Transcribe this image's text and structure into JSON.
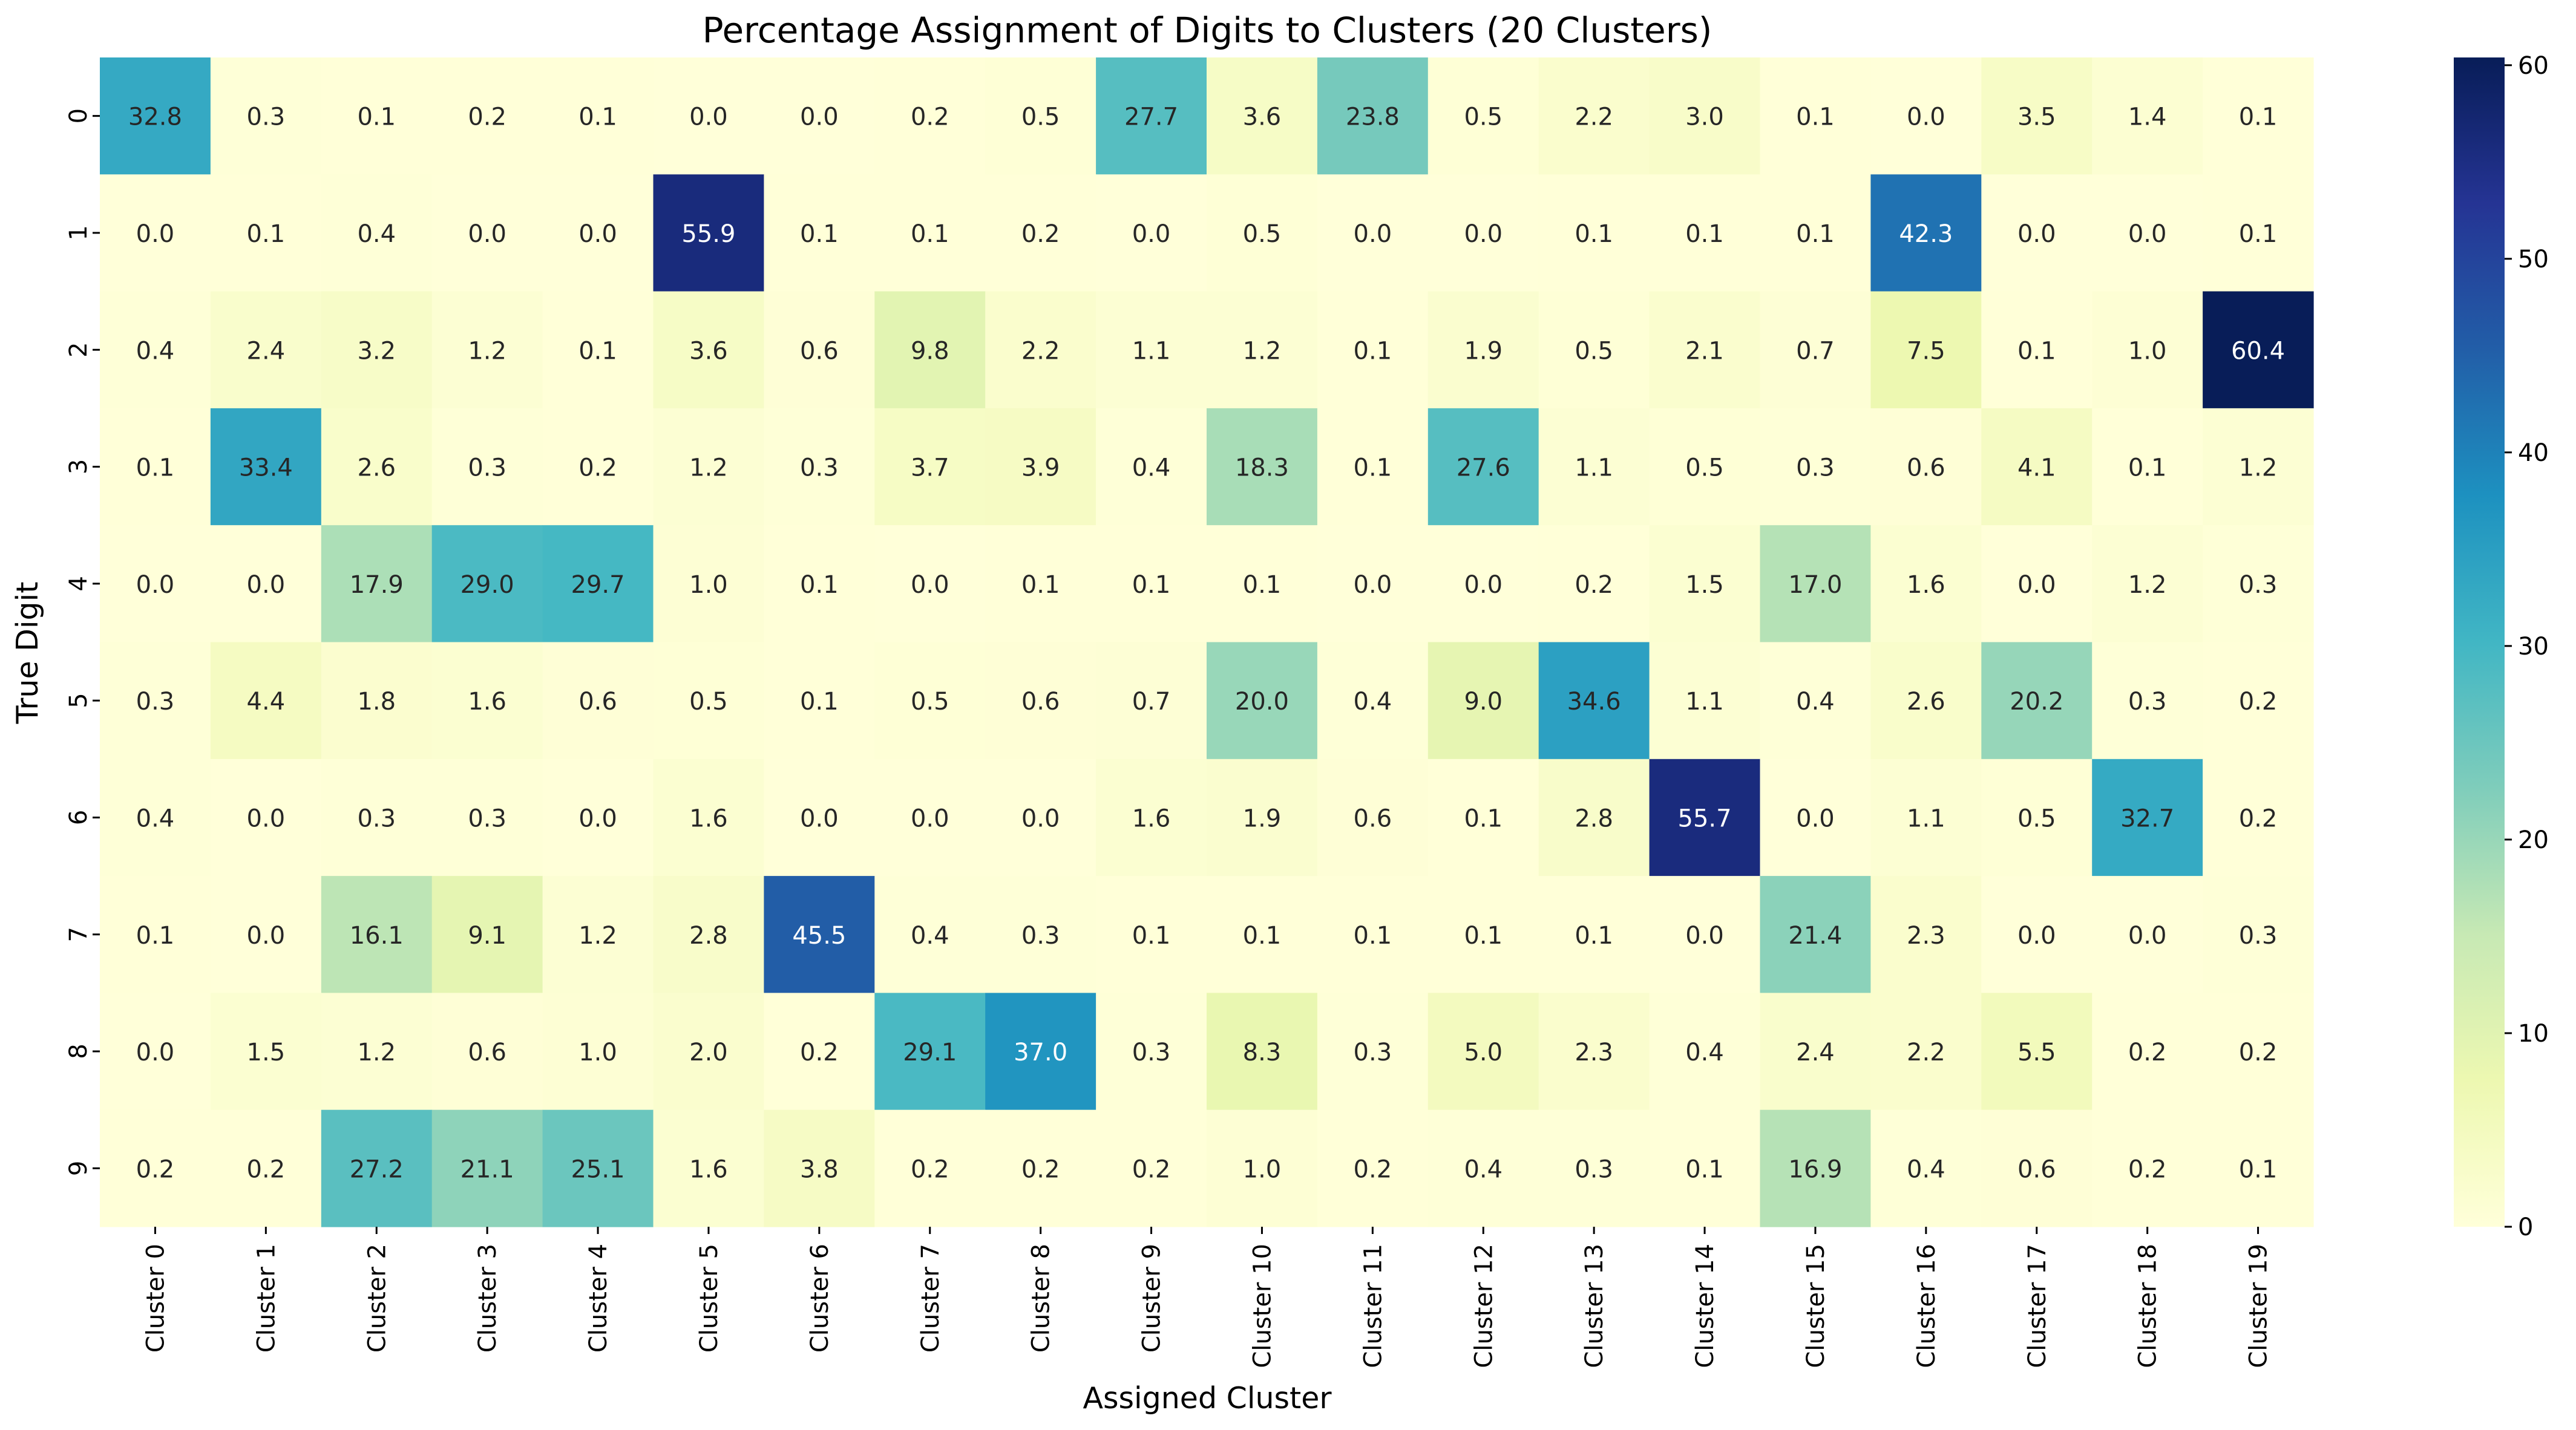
{
  "chart_data": {
    "type": "heatmap",
    "title": "Percentage Assignment of Digits to Clusters (20 Clusters)",
    "xlabel": "Assigned Cluster",
    "ylabel": "True Digit",
    "x_categories": [
      "Cluster 0",
      "Cluster 1",
      "Cluster 2",
      "Cluster 3",
      "Cluster 4",
      "Cluster 5",
      "Cluster 6",
      "Cluster 7",
      "Cluster 8",
      "Cluster 9",
      "Cluster 10",
      "Cluster 11",
      "Cluster 12",
      "Cluster 13",
      "Cluster 14",
      "Cluster 15",
      "Cluster 16",
      "Cluster 17",
      "Cluster 18",
      "Cluster 19"
    ],
    "y_categories": [
      "0",
      "1",
      "2",
      "3",
      "4",
      "5",
      "6",
      "7",
      "8",
      "9"
    ],
    "values": [
      [
        32.8,
        0.3,
        0.1,
        0.2,
        0.1,
        0.0,
        0.0,
        0.2,
        0.5,
        27.7,
        3.6,
        23.8,
        0.5,
        2.2,
        3.0,
        0.1,
        0.0,
        3.5,
        1.4,
        0.1
      ],
      [
        0.0,
        0.1,
        0.4,
        0.0,
        0.0,
        55.9,
        0.1,
        0.1,
        0.2,
        0.0,
        0.5,
        0.0,
        0.0,
        0.1,
        0.1,
        0.1,
        42.3,
        0.0,
        0.0,
        0.1
      ],
      [
        0.4,
        2.4,
        3.2,
        1.2,
        0.1,
        3.6,
        0.6,
        9.8,
        2.2,
        1.1,
        1.2,
        0.1,
        1.9,
        0.5,
        2.1,
        0.7,
        7.5,
        0.1,
        1.0,
        60.4
      ],
      [
        0.1,
        33.4,
        2.6,
        0.3,
        0.2,
        1.2,
        0.3,
        3.7,
        3.9,
        0.4,
        18.3,
        0.1,
        27.6,
        1.1,
        0.5,
        0.3,
        0.6,
        4.1,
        0.1,
        1.2
      ],
      [
        0.0,
        0.0,
        17.9,
        29.0,
        29.7,
        1.0,
        0.1,
        0.0,
        0.1,
        0.1,
        0.1,
        0.0,
        0.0,
        0.2,
        1.5,
        17.0,
        1.6,
        0.0,
        1.2,
        0.3
      ],
      [
        0.3,
        4.4,
        1.8,
        1.6,
        0.6,
        0.5,
        0.1,
        0.5,
        0.6,
        0.7,
        20.0,
        0.4,
        9.0,
        34.6,
        1.1,
        0.4,
        2.6,
        20.2,
        0.3,
        0.2
      ],
      [
        0.4,
        0.0,
        0.3,
        0.3,
        0.0,
        1.6,
        0.0,
        0.0,
        0.0,
        1.6,
        1.9,
        0.6,
        0.1,
        2.8,
        55.7,
        0.0,
        1.1,
        0.5,
        32.7,
        0.2
      ],
      [
        0.1,
        0.0,
        16.1,
        9.1,
        1.2,
        2.8,
        45.5,
        0.4,
        0.3,
        0.1,
        0.1,
        0.1,
        0.1,
        0.1,
        0.0,
        21.4,
        2.3,
        0.0,
        0.0,
        0.3
      ],
      [
        0.0,
        1.5,
        1.2,
        0.6,
        1.0,
        2.0,
        0.2,
        29.1,
        37.0,
        0.3,
        8.3,
        0.3,
        5.0,
        2.3,
        0.4,
        2.4,
        2.2,
        5.5,
        0.2,
        0.2
      ],
      [
        0.2,
        0.2,
        27.2,
        21.1,
        25.1,
        1.6,
        3.8,
        0.2,
        0.2,
        0.2,
        1.0,
        0.2,
        0.4,
        0.3,
        0.1,
        16.9,
        0.4,
        0.6,
        0.2,
        0.1
      ]
    ],
    "colorbar": {
      "colormap": "YlGnBu",
      "range": [
        0,
        60.4
      ],
      "ticks": [
        "0",
        "10",
        "20",
        "30",
        "40",
        "50",
        "60"
      ],
      "tick_values": [
        0,
        10,
        20,
        30,
        40,
        50,
        60
      ],
      "stops": [
        "#ffffd9",
        "#edf8b1",
        "#c7e9b4",
        "#7fcdbb",
        "#41b6c4",
        "#1d91c0",
        "#225ea8",
        "#253494",
        "#081d58"
      ]
    },
    "grid": false
  }
}
